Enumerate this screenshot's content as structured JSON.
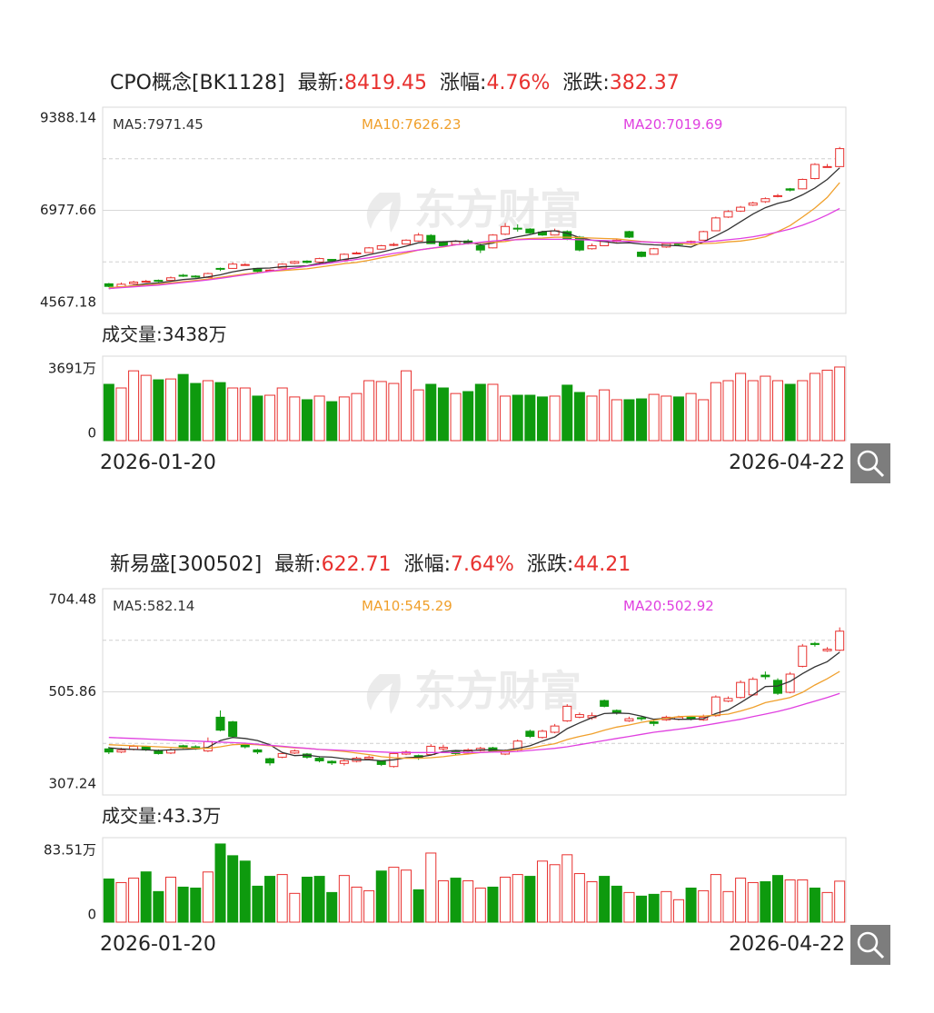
{
  "chart_data": [
    {
      "type": "candlestick",
      "header": {
        "name": "CPO概念[BK1128]",
        "fields": [
          {
            "label": "最新:",
            "value": 8419.45
          },
          {
            "label": "涨幅:",
            "value": 4.76,
            "value_label": "4.76%"
          },
          {
            "label": "涨跌:",
            "value": 382.37
          }
        ]
      },
      "watermark": "东方财富",
      "categories": [
        "2026-01-20",
        null,
        null,
        null,
        null,
        null,
        null,
        null,
        null,
        null,
        null,
        null,
        null,
        null,
        null,
        null,
        null,
        null,
        null,
        null,
        null,
        null,
        null,
        null,
        null,
        null,
        null,
        null,
        null,
        null,
        null,
        null,
        null,
        null,
        null,
        null,
        null,
        null,
        null,
        null,
        null,
        null,
        null,
        null,
        null,
        null,
        null,
        null,
        null,
        null,
        null,
        null,
        null,
        null,
        null,
        null,
        null,
        null,
        null,
        "2026-04-22"
      ],
      "open": [
        5260,
        5190,
        5260,
        5300,
        5340,
        5340,
        5460,
        5440,
        5410,
        5620,
        5620,
        5700,
        5620,
        5560,
        5630,
        5740,
        5790,
        5770,
        5830,
        5820,
        5960,
        5990,
        6070,
        6160,
        6190,
        6260,
        6390,
        6240,
        6180,
        6260,
        6150,
        6100,
        6420,
        6560,
        6540,
        6470,
        6400,
        6480,
        6350,
        6080,
        6150,
        6250,
        6480,
        6000,
        5950,
        6120,
        6200,
        6220,
        6280,
        6500,
        6820,
        6960,
        7100,
        7180,
        7300,
        7480,
        7480,
        7720,
        7990,
        8000
      ],
      "high": [
        5280,
        5290,
        5330,
        5350,
        5360,
        5430,
        5490,
        5460,
        5520,
        5640,
        5760,
        5740,
        5630,
        5600,
        5740,
        5800,
        5810,
        5870,
        5840,
        5970,
        6010,
        6120,
        6170,
        6220,
        6300,
        6450,
        6420,
        6260,
        6280,
        6300,
        6200,
        6420,
        6680,
        6650,
        6560,
        6500,
        6550,
        6510,
        6380,
        6200,
        6270,
        6300,
        6500,
        6020,
        6100,
        6220,
        6230,
        6270,
        6500,
        6830,
        6980,
        7080,
        7180,
        7280,
        7360,
        7500,
        7720,
        8080,
        8060,
        8460
      ],
      "low": [
        5180,
        5180,
        5240,
        5290,
        5300,
        5330,
        5420,
        5400,
        5400,
        5560,
        5610,
        5690,
        5530,
        5540,
        5620,
        5720,
        5740,
        5760,
        5780,
        5810,
        5950,
        5980,
        6060,
        6140,
        6180,
        6250,
        6190,
        6120,
        6170,
        6180,
        5980,
        6090,
        6400,
        6480,
        6430,
        6380,
        6390,
        6280,
        6020,
        6060,
        6140,
        6230,
        6330,
        5880,
        5940,
        6100,
        6150,
        6200,
        6270,
        6490,
        6800,
        6940,
        7080,
        7150,
        7280,
        7420,
        7470,
        7700,
        7980,
        7990
      ],
      "close": [
        5200,
        5250,
        5300,
        5320,
        5330,
        5400,
        5450,
        5420,
        5500,
        5600,
        5720,
        5710,
        5550,
        5580,
        5720,
        5780,
        5760,
        5850,
        5800,
        5950,
        5980,
        6100,
        6150,
        6180,
        6280,
        6400,
        6200,
        6150,
        6250,
        6200,
        6050,
        6400,
        6600,
        6550,
        6450,
        6400,
        6500,
        6300,
        6050,
        6150,
        6250,
        6280,
        6350,
        5900,
        6080,
        6200,
        6180,
        6250,
        6480,
        6800,
        6950,
        7050,
        7150,
        7250,
        7320,
        7450,
        7700,
        8050,
        8000,
        8419.45
      ],
      "up_color": "#e8312f",
      "down_color": "#0e9a0e",
      "ylim": [
        4567.18,
        9388.14
      ],
      "yticks": [
        9388.14,
        6977.66,
        4567.18
      ],
      "series": [
        {
          "name": "MA5:",
          "color": "#333333",
          "values": [
            5150,
            5180,
            5220,
            5260,
            5280,
            5320,
            5360,
            5380,
            5420,
            5470,
            5540,
            5590,
            5620,
            5630,
            5660,
            5670,
            5680,
            5740,
            5780,
            5830,
            5870,
            5940,
            6000,
            6070,
            6140,
            6220,
            6240,
            6240,
            6260,
            6240,
            6170,
            6210,
            6300,
            6360,
            6410,
            6480,
            6500,
            6440,
            6340,
            6280,
            6250,
            6210,
            6220,
            6190,
            6170,
            6160,
            6150,
            6120,
            6240,
            6380,
            6530,
            6710,
            6890,
            7040,
            7140,
            7210,
            7340,
            7500,
            7700,
            7971.45
          ]
        },
        {
          "name": "MA10:",
          "color": "#f0a02c",
          "values": [
            5170,
            5190,
            5210,
            5230,
            5250,
            5280,
            5310,
            5340,
            5370,
            5410,
            5450,
            5490,
            5520,
            5550,
            5570,
            5590,
            5610,
            5650,
            5690,
            5730,
            5760,
            5810,
            5870,
            5920,
            5980,
            6050,
            6090,
            6120,
            6170,
            6200,
            6220,
            6230,
            6250,
            6300,
            6320,
            6330,
            6350,
            6350,
            6340,
            6330,
            6320,
            6310,
            6280,
            6250,
            6230,
            6210,
            6210,
            6180,
            6200,
            6210,
            6240,
            6260,
            6300,
            6360,
            6480,
            6620,
            6820,
            7030,
            7280,
            7626.23
          ]
        },
        {
          "name": "MA20:",
          "color": "#e040e0",
          "values": [
            5150,
            5170,
            5190,
            5210,
            5230,
            5260,
            5290,
            5320,
            5350,
            5390,
            5430,
            5470,
            5510,
            5550,
            5590,
            5630,
            5670,
            5710,
            5750,
            5790,
            5830,
            5870,
            5920,
            5970,
            6010,
            6050,
            6090,
            6130,
            6170,
            6200,
            6230,
            6260,
            6280,
            6290,
            6300,
            6300,
            6300,
            6300,
            6290,
            6280,
            6270,
            6260,
            6250,
            6240,
            6230,
            6220,
            6220,
            6230,
            6240,
            6260,
            6290,
            6320,
            6360,
            6410,
            6470,
            6540,
            6630,
            6740,
            6870,
            7019.69
          ]
        }
      ],
      "volume": {
        "label": "成交量:",
        "value": 3438,
        "value_label": "3438万",
        "ylim": [
          0,
          3691
        ],
        "yticks": [
          {
            "value": 3691,
            "label": "3691万"
          },
          0
        ],
        "values": [
          2630,
          2460,
          3260,
          3050,
          2840,
          2880,
          3090,
          2670,
          2800,
          2710,
          2460,
          2460,
          2080,
          2120,
          2460,
          2040,
          1910,
          2080,
          1820,
          2040,
          2200,
          2800,
          2760,
          2670,
          3260,
          2370,
          2630,
          2460,
          2200,
          2290,
          2630,
          2630,
          2080,
          2120,
          2120,
          2040,
          2080,
          2590,
          2250,
          2080,
          2370,
          1910,
          1910,
          1950,
          2160,
          2080,
          2040,
          2200,
          1910,
          2710,
          2800,
          3140,
          2800,
          3010,
          2800,
          2630,
          2800,
          3140,
          3290,
          3438
        ]
      }
    },
    {
      "type": "candlestick",
      "header": {
        "name": "新易盛[300502]",
        "fields": [
          {
            "label": "最新:",
            "value": 622.71
          },
          {
            "label": "涨幅:",
            "value": 7.64,
            "value_label": "7.64%"
          },
          {
            "label": "涨跌:",
            "value": 44.21
          }
        ]
      },
      "watermark": "东方财富",
      "categories": [
        "2026-01-20",
        null,
        null,
        null,
        null,
        null,
        null,
        null,
        null,
        null,
        null,
        null,
        null,
        null,
        null,
        null,
        null,
        null,
        null,
        null,
        null,
        null,
        null,
        null,
        null,
        null,
        null,
        null,
        null,
        null,
        null,
        null,
        null,
        null,
        null,
        null,
        null,
        null,
        null,
        null,
        null,
        null,
        null,
        null,
        null,
        null,
        null,
        null,
        null,
        null,
        null,
        null,
        null,
        null,
        null,
        null,
        null,
        null,
        null,
        "2026-04-22"
      ],
      "open": [
        396,
        390,
        395,
        400,
        393,
        388,
        402,
        400,
        392,
        457,
        448,
        404,
        394,
        377,
        380,
        388,
        386,
        378,
        372,
        368,
        372,
        377,
        372,
        362,
        386,
        383,
        385,
        396,
        392,
        388,
        393,
        398,
        386,
        394,
        430,
        418,
        428,
        450,
        457,
        456,
        489,
        470,
        450,
        456,
        448,
        452,
        453,
        457,
        452,
        460,
        488,
        495,
        500,
        538,
        528,
        505,
        555,
        599,
        585,
        586
      ],
      "high": [
        400,
        398,
        404,
        402,
        395,
        397,
        404,
        403,
        418,
        470,
        450,
        408,
        396,
        379,
        390,
        395,
        388,
        380,
        374,
        376,
        381,
        383,
        374,
        390,
        393,
        385,
        405,
        404,
        394,
        397,
        400,
        400,
        395,
        414,
        433,
        433,
        444,
        482,
        466,
        466,
        491,
        472,
        458,
        458,
        452,
        460,
        460,
        459,
        462,
        499,
        497,
        528,
        534,
        545,
        532,
        544,
        598,
        602,
        592,
        630
      ],
      "low": [
        386,
        388,
        393,
        392,
        385,
        386,
        396,
        394,
        390,
        430,
        418,
        397,
        386,
        364,
        378,
        386,
        377,
        370,
        365,
        364,
        370,
        375,
        363,
        360,
        384,
        375,
        383,
        393,
        384,
        386,
        391,
        389,
        384,
        392,
        417,
        416,
        426,
        448,
        455,
        452,
        476,
        462,
        448,
        450,
        440,
        450,
        451,
        451,
        450,
        458,
        486,
        493,
        498,
        530,
        500,
        503,
        553,
        593,
        583,
        584
      ],
      "close": [
        390,
        394,
        401,
        394,
        387,
        394,
        399,
        396,
        410,
        432,
        420,
        400,
        390,
        369,
        387,
        392,
        380,
        373,
        369,
        373,
        378,
        380,
        366,
        387,
        390,
        378,
        401,
        399,
        387,
        394,
        397,
        392,
        392,
        411,
        420,
        430,
        440,
        478,
        462,
        460,
        478,
        466,
        454,
        454,
        445,
        457,
        457,
        454,
        457,
        496,
        493,
        524,
        530,
        535,
        503,
        540,
        594,
        597,
        588,
        622.71
      ],
      "up_color": "#e8312f",
      "down_color": "#0e9a0e",
      "ylim": [
        307.24,
        704.48
      ],
      "yticks": [
        704.48,
        505.86,
        307.24
      ],
      "series": [
        {
          "name": "MA5:",
          "color": "#333333",
          "values": [
            398,
            396,
            395,
            394,
            393,
            394,
            395,
            396,
            399,
            412,
            418,
            416,
            412,
            404,
            389,
            383,
            384,
            381,
            380,
            377,
            375,
            375,
            373,
            375,
            379,
            380,
            384,
            391,
            393,
            392,
            394,
            394,
            393,
            397,
            402,
            411,
            419,
            435,
            446,
            456,
            464,
            465,
            464,
            459,
            453,
            455,
            453,
            453,
            454,
            464,
            471,
            485,
            500,
            516,
            517,
            526,
            541,
            554,
            564,
            582.14
          ]
        },
        {
          "name": "MA10:",
          "color": "#f0a02c",
          "values": [
            404,
            403,
            402,
            401,
            400,
            399,
            398,
            397,
            397,
            400,
            404,
            405,
            404,
            402,
            400,
            398,
            397,
            395,
            393,
            391,
            388,
            385,
            381,
            379,
            378,
            378,
            379,
            381,
            384,
            386,
            389,
            391,
            392,
            394,
            397,
            402,
            406,
            414,
            420,
            425,
            432,
            438,
            442,
            447,
            451,
            455,
            458,
            459,
            459,
            461,
            463,
            469,
            476,
            485,
            490,
            495,
            505,
            519,
            531,
            545.29
          ]
        },
        {
          "name": "MA20:",
          "color": "#e040e0",
          "values": [
            418,
            417,
            416,
            415,
            414,
            413,
            412,
            411,
            410,
            409,
            408,
            407,
            405,
            403,
            401,
            399,
            397,
            395,
            394,
            393,
            392,
            391,
            390,
            389,
            389,
            389,
            389,
            389,
            389,
            389,
            389,
            390,
            390,
            391,
            393,
            395,
            397,
            400,
            404,
            408,
            412,
            416,
            420,
            424,
            428,
            431,
            434,
            437,
            441,
            445,
            449,
            453,
            458,
            463,
            468,
            474,
            481,
            488,
            495,
            502.92
          ]
        }
      ],
      "volume": {
        "label": "成交量:",
        "value": 43.3,
        "value_label": "43.3万",
        "ylim": [
          0,
          83.51
        ],
        "yticks": [
          {
            "value": 83.51,
            "label": "83.51万"
          },
          0
        ],
        "values": [
          45.6,
          41.8,
          46.5,
          53.1,
          32.3,
          47.5,
          37,
          36,
          53,
          82.6,
          70.2,
          64.5,
          38,
          48.4,
          50.3,
          30.4,
          47.5,
          48.4,
          31.3,
          49.3,
          37,
          33.2,
          54,
          58,
          55,
          34.2,
          73,
          43.7,
          46.5,
          43.7,
          36,
          37,
          47.5,
          50.3,
          48.4,
          64.5,
          60.7,
          71.2,
          51.3,
          42.7,
          48.4,
          38,
          31.3,
          27.5,
          29.4,
          32.3,
          23.7,
          36,
          33.2,
          50.3,
          32.3,
          46.5,
          41.8,
          42.7,
          49.3,
          44.6,
          44.6,
          36,
          31.3,
          43.3
        ]
      }
    }
  ]
}
